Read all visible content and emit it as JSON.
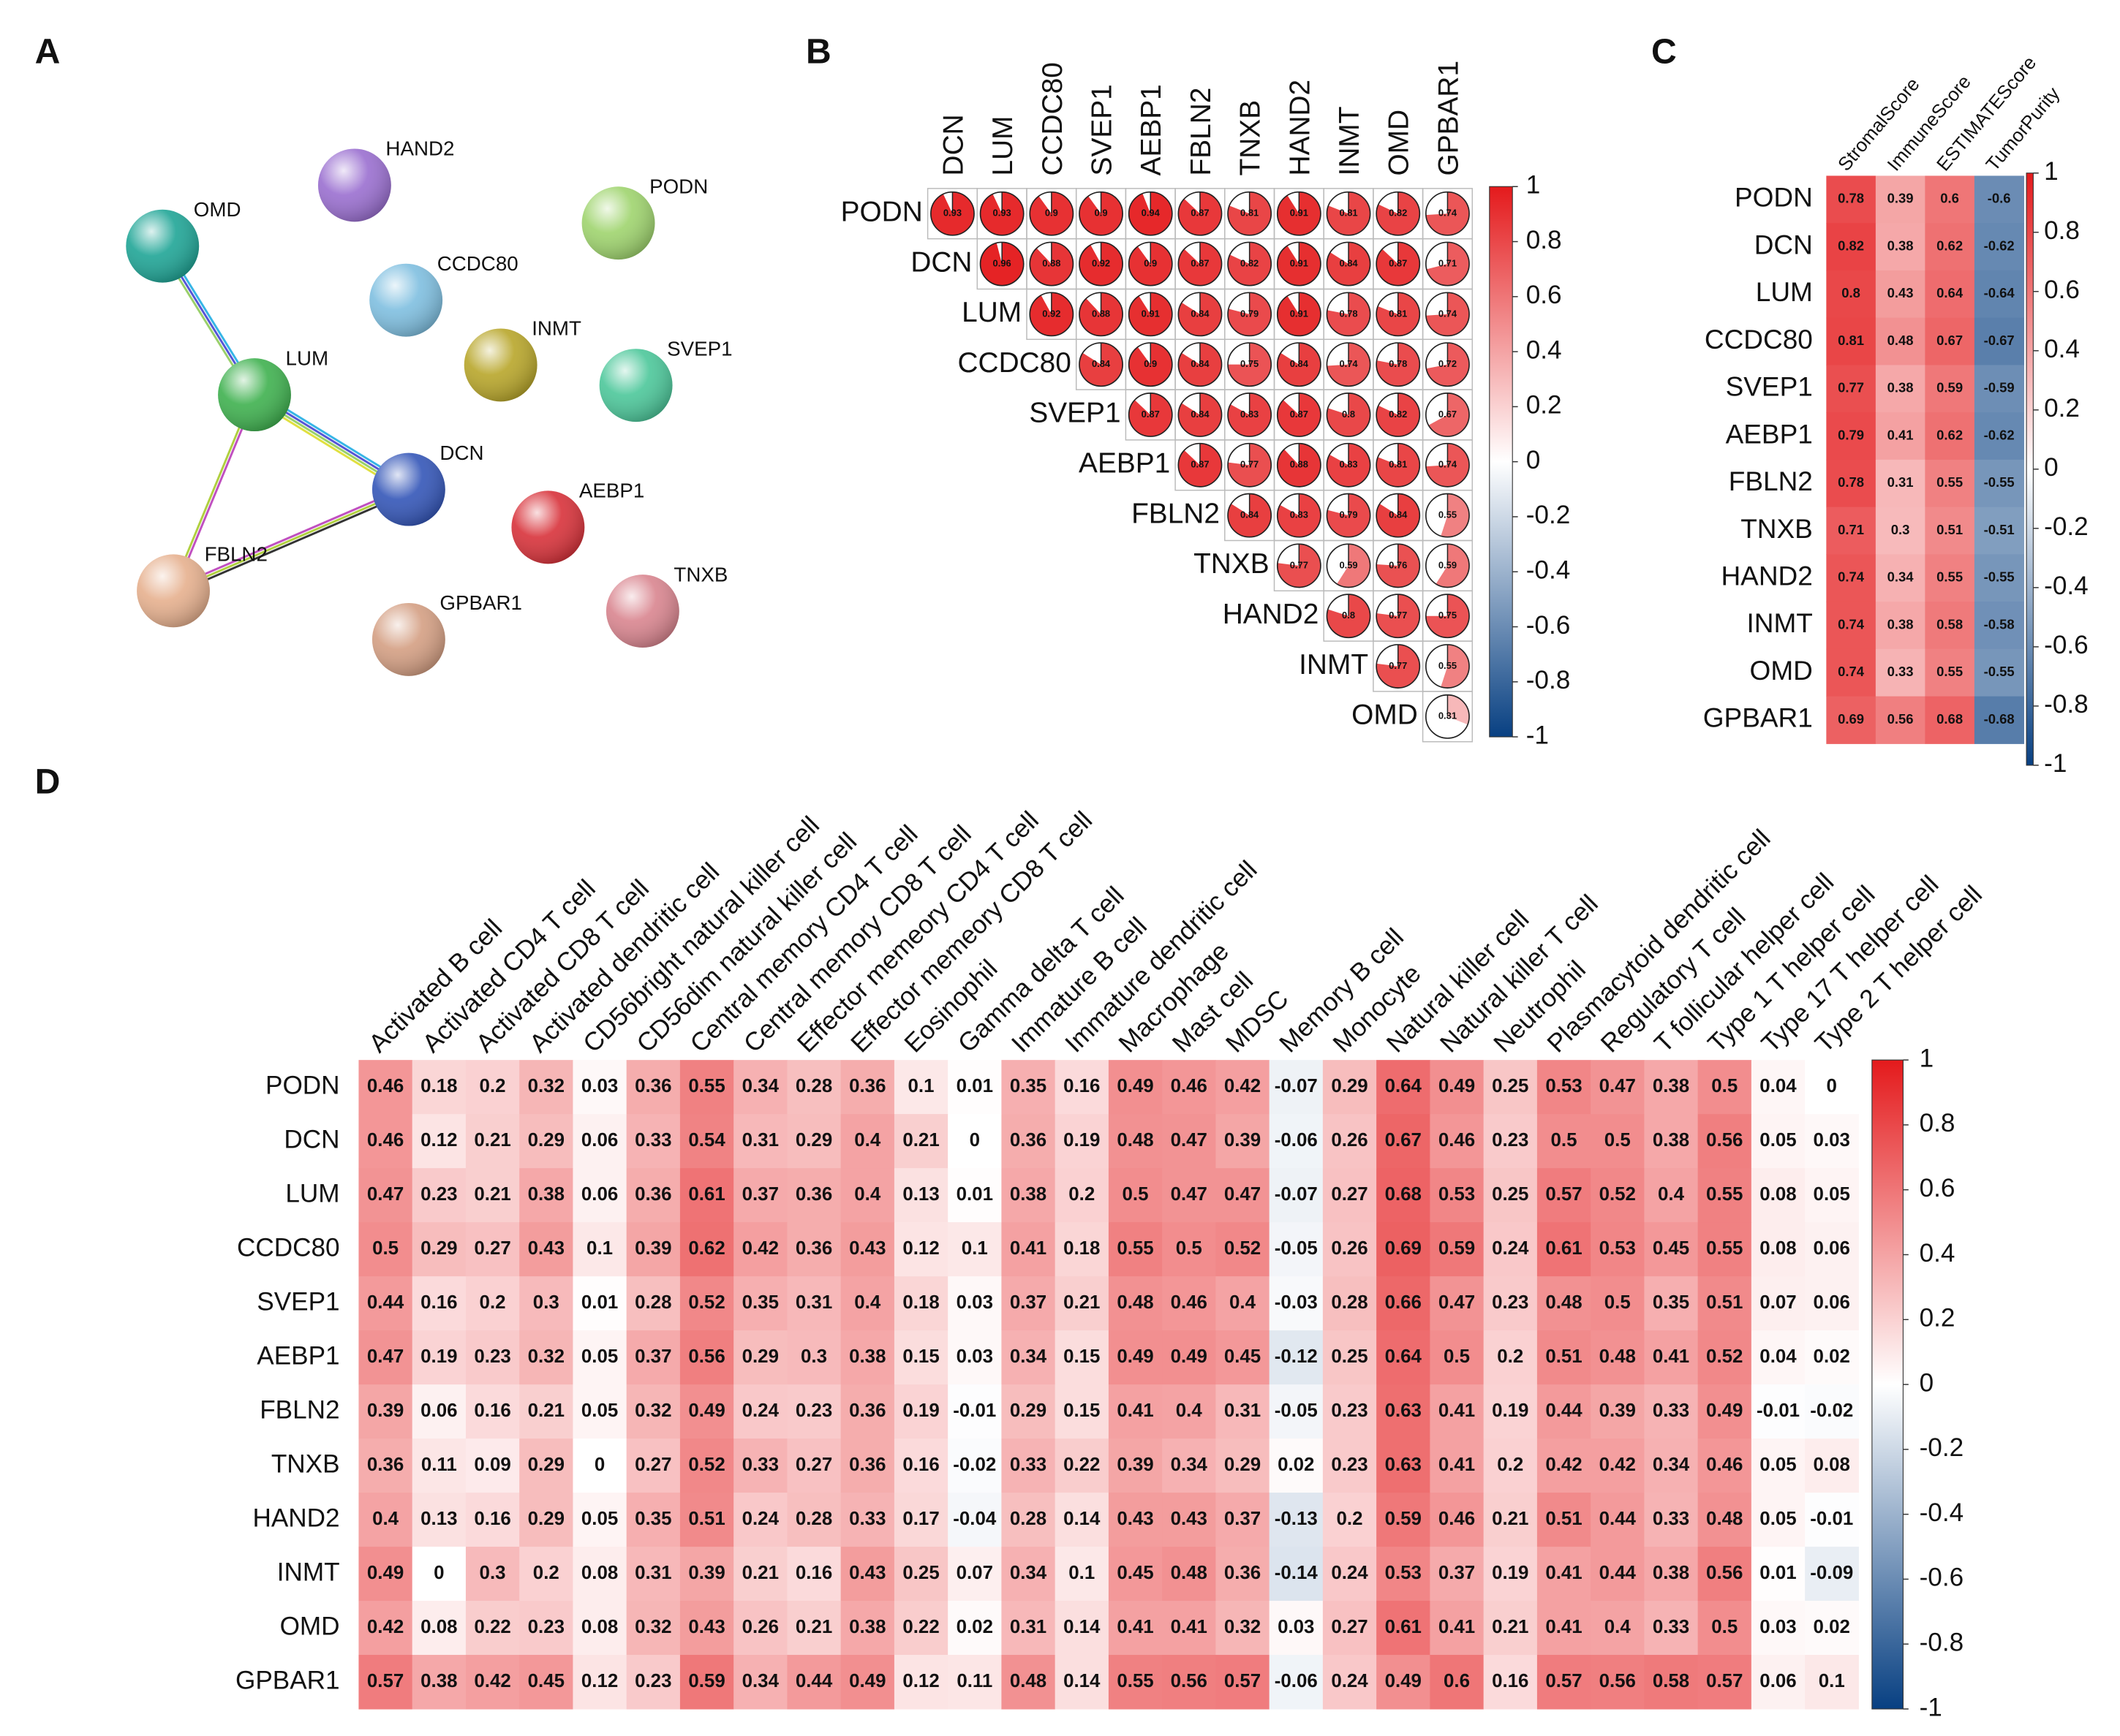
{
  "panel_labels": [
    "A",
    "B",
    "C",
    "D"
  ],
  "network": {
    "nodes": [
      "HAND2",
      "OMD",
      "PODN",
      "CCDC80",
      "INMT",
      "SVEP1",
      "LUM",
      "DCN",
      "AEBP1",
      "FBLN2",
      "GPBAR1",
      "TNXB"
    ]
  },
  "chart_data": [
    {
      "type": "corrplot",
      "rows": [
        "PODN",
        "DCN",
        "LUM",
        "CCDC80",
        "SVEP1",
        "AEBP1",
        "FBLN2",
        "TNXB",
        "HAND2",
        "INMT",
        "OMD"
      ],
      "columns": [
        "DCN",
        "LUM",
        "CCDC80",
        "SVEP1",
        "AEBP1",
        "FBLN2",
        "TNXB",
        "HAND2",
        "INMT",
        "OMD",
        "GPBAR1"
      ],
      "values": [
        [
          0.93,
          0.93,
          0.9,
          0.9,
          0.94,
          0.87,
          0.81,
          0.91,
          0.81,
          0.82,
          0.74
        ],
        [
          null,
          0.96,
          0.88,
          0.92,
          0.9,
          0.87,
          0.82,
          0.91,
          0.84,
          0.87,
          0.71
        ],
        [
          null,
          null,
          0.92,
          0.88,
          0.91,
          0.84,
          0.79,
          0.91,
          0.78,
          0.81,
          0.74
        ],
        [
          null,
          null,
          null,
          0.84,
          0.9,
          0.84,
          0.75,
          0.84,
          0.74,
          0.78,
          0.72
        ],
        [
          null,
          null,
          null,
          null,
          0.87,
          0.84,
          0.83,
          0.87,
          0.8,
          0.82,
          0.67
        ],
        [
          null,
          null,
          null,
          null,
          null,
          0.87,
          0.77,
          0.88,
          0.83,
          0.81,
          0.74
        ],
        [
          null,
          null,
          null,
          null,
          null,
          null,
          0.84,
          0.83,
          0.79,
          0.84,
          0.55
        ],
        [
          null,
          null,
          null,
          null,
          null,
          null,
          null,
          0.77,
          0.59,
          0.76,
          0.59
        ],
        [
          null,
          null,
          null,
          null,
          null,
          null,
          null,
          null,
          0.8,
          0.77,
          0.75
        ],
        [
          null,
          null,
          null,
          null,
          null,
          null,
          null,
          null,
          null,
          0.77,
          0.55
        ],
        [
          null,
          null,
          null,
          null,
          null,
          null,
          null,
          null,
          null,
          null,
          0.31
        ]
      ],
      "zlim": [
        -1,
        1
      ],
      "zticks": [
        1,
        0.8,
        0.6,
        0.4,
        0.2,
        0,
        -0.2,
        -0.4,
        -0.6,
        -0.8,
        -1
      ]
    },
    {
      "type": "heatmap",
      "rows": [
        "PODN",
        "DCN",
        "LUM",
        "CCDC80",
        "SVEP1",
        "AEBP1",
        "FBLN2",
        "TNXB",
        "HAND2",
        "INMT",
        "OMD",
        "GPBAR1"
      ],
      "columns": [
        "StromalScore",
        "ImmuneScore",
        "ESTIMATEScore",
        "TumorPurity"
      ],
      "values": [
        [
          0.78,
          0.39,
          0.6,
          -0.6
        ],
        [
          0.82,
          0.38,
          0.62,
          -0.62
        ],
        [
          0.8,
          0.43,
          0.64,
          -0.64
        ],
        [
          0.81,
          0.48,
          0.67,
          -0.67
        ],
        [
          0.77,
          0.38,
          0.59,
          -0.59
        ],
        [
          0.79,
          0.41,
          0.62,
          -0.62
        ],
        [
          0.78,
          0.31,
          0.55,
          -0.55
        ],
        [
          0.71,
          0.3,
          0.51,
          -0.51
        ],
        [
          0.74,
          0.34,
          0.55,
          -0.55
        ],
        [
          0.74,
          0.38,
          0.58,
          -0.58
        ],
        [
          0.74,
          0.33,
          0.55,
          -0.55
        ],
        [
          0.69,
          0.56,
          0.68,
          -0.68
        ]
      ],
      "zlim": [
        -1,
        1
      ],
      "zticks": [
        1,
        0.8,
        0.6,
        0.4,
        0.2,
        0,
        -0.2,
        -0.4,
        -0.6,
        -0.8,
        -1
      ]
    },
    {
      "type": "heatmap",
      "rows": [
        "PODN",
        "DCN",
        "LUM",
        "CCDC80",
        "SVEP1",
        "AEBP1",
        "FBLN2",
        "TNXB",
        "HAND2",
        "INMT",
        "OMD",
        "GPBAR1"
      ],
      "columns": [
        "Activated B cell",
        "Activated CD4 T cell",
        "Activated CD8 T cell",
        "Activated dendritic cell",
        "CD56bright natural killer cell",
        "CD56dim natural killer cell",
        "Central memory CD4 T cell",
        "Central memory CD8 T cell",
        "Effector memeory CD4 T cell",
        "Effector memeory CD8 T cell",
        "Eosinophil",
        "Gamma delta T cell",
        "Immature  B cell",
        "Immature dendritic cell",
        "Macrophage",
        "Mast cell",
        "MDSC",
        "Memory B cell",
        "Monocyte",
        "Natural killer cell",
        "Natural killer T cell",
        "Neutrophil",
        "Plasmacytoid dendritic cell",
        "Regulatory T cell",
        "T follicular helper cell",
        "Type 1 T helper cell",
        "Type 17 T helper cell",
        "Type 2 T helper cell"
      ],
      "values": [
        [
          0.46,
          0.18,
          0.2,
          0.32,
          0.03,
          0.36,
          0.55,
          0.34,
          0.28,
          0.36,
          0.1,
          0.01,
          0.35,
          0.16,
          0.49,
          0.46,
          0.42,
          -0.07,
          0.29,
          0.64,
          0.49,
          0.25,
          0.53,
          0.47,
          0.38,
          0.5,
          0.04,
          0
        ],
        [
          0.46,
          0.12,
          0.21,
          0.29,
          0.06,
          0.33,
          0.54,
          0.31,
          0.29,
          0.4,
          0.21,
          0,
          0.36,
          0.19,
          0.48,
          0.47,
          0.39,
          -0.06,
          0.26,
          0.67,
          0.46,
          0.23,
          0.5,
          0.5,
          0.38,
          0.56,
          0.05,
          0.03
        ],
        [
          0.47,
          0.23,
          0.21,
          0.38,
          0.06,
          0.36,
          0.61,
          0.37,
          0.36,
          0.4,
          0.13,
          0.01,
          0.38,
          0.2,
          0.5,
          0.47,
          0.47,
          -0.07,
          0.27,
          0.68,
          0.53,
          0.25,
          0.57,
          0.52,
          0.4,
          0.55,
          0.08,
          0.05
        ],
        [
          0.5,
          0.29,
          0.27,
          0.43,
          0.1,
          0.39,
          0.62,
          0.42,
          0.36,
          0.43,
          0.12,
          0.1,
          0.41,
          0.18,
          0.55,
          0.5,
          0.52,
          -0.05,
          0.26,
          0.69,
          0.59,
          0.24,
          0.61,
          0.53,
          0.45,
          0.55,
          0.08,
          0.06
        ],
        [
          0.44,
          0.16,
          0.2,
          0.3,
          0.01,
          0.28,
          0.52,
          0.35,
          0.31,
          0.4,
          0.18,
          0.03,
          0.37,
          0.21,
          0.48,
          0.46,
          0.4,
          -0.03,
          0.28,
          0.66,
          0.47,
          0.23,
          0.48,
          0.5,
          0.35,
          0.51,
          0.07,
          0.06
        ],
        [
          0.47,
          0.19,
          0.23,
          0.32,
          0.05,
          0.37,
          0.56,
          0.29,
          0.3,
          0.38,
          0.15,
          0.03,
          0.34,
          0.15,
          0.49,
          0.49,
          0.45,
          -0.12,
          0.25,
          0.64,
          0.5,
          0.2,
          0.51,
          0.48,
          0.41,
          0.52,
          0.04,
          0.02
        ],
        [
          0.39,
          0.06,
          0.16,
          0.21,
          0.05,
          0.32,
          0.49,
          0.24,
          0.23,
          0.36,
          0.19,
          -0.01,
          0.29,
          0.15,
          0.41,
          0.4,
          0.31,
          -0.05,
          0.23,
          0.63,
          0.41,
          0.19,
          0.44,
          0.39,
          0.33,
          0.49,
          -0.01,
          -0.02
        ],
        [
          0.36,
          0.11,
          0.09,
          0.29,
          0,
          0.27,
          0.52,
          0.33,
          0.27,
          0.36,
          0.16,
          -0.02,
          0.33,
          0.22,
          0.39,
          0.34,
          0.29,
          0.02,
          0.23,
          0.63,
          0.41,
          0.2,
          0.42,
          0.42,
          0.34,
          0.46,
          0.05,
          0.08
        ],
        [
          0.4,
          0.13,
          0.16,
          0.29,
          0.05,
          0.35,
          0.51,
          0.24,
          0.28,
          0.33,
          0.17,
          -0.04,
          0.28,
          0.14,
          0.43,
          0.43,
          0.37,
          -0.13,
          0.2,
          0.59,
          0.46,
          0.21,
          0.51,
          0.44,
          0.33,
          0.48,
          0.05,
          -0.01
        ],
        [
          0.49,
          0,
          0.3,
          0.2,
          0.08,
          0.31,
          0.39,
          0.21,
          0.16,
          0.43,
          0.25,
          0.07,
          0.34,
          0.1,
          0.45,
          0.48,
          0.36,
          -0.14,
          0.24,
          0.53,
          0.37,
          0.19,
          0.41,
          0.44,
          0.38,
          0.56,
          0.01,
          -0.09
        ],
        [
          0.42,
          0.08,
          0.22,
          0.23,
          0.08,
          0.32,
          0.43,
          0.26,
          0.21,
          0.38,
          0.22,
          0.02,
          0.31,
          0.14,
          0.41,
          0.41,
          0.32,
          0.03,
          0.27,
          0.61,
          0.41,
          0.21,
          0.41,
          0.4,
          0.33,
          0.5,
          0.03,
          0.02
        ],
        [
          0.57,
          0.38,
          0.42,
          0.45,
          0.12,
          0.23,
          0.59,
          0.34,
          0.44,
          0.49,
          0.12,
          0.11,
          0.48,
          0.14,
          0.55,
          0.56,
          0.57,
          -0.06,
          0.24,
          0.49,
          0.6,
          0.16,
          0.57,
          0.56,
          0.58,
          0.57,
          0.06,
          0.1
        ]
      ],
      "zlim": [
        -1,
        1
      ],
      "zticks": [
        1,
        0.8,
        0.6,
        0.4,
        0.2,
        0,
        -0.2,
        -0.4,
        -0.6,
        -0.8,
        -1
      ]
    }
  ]
}
